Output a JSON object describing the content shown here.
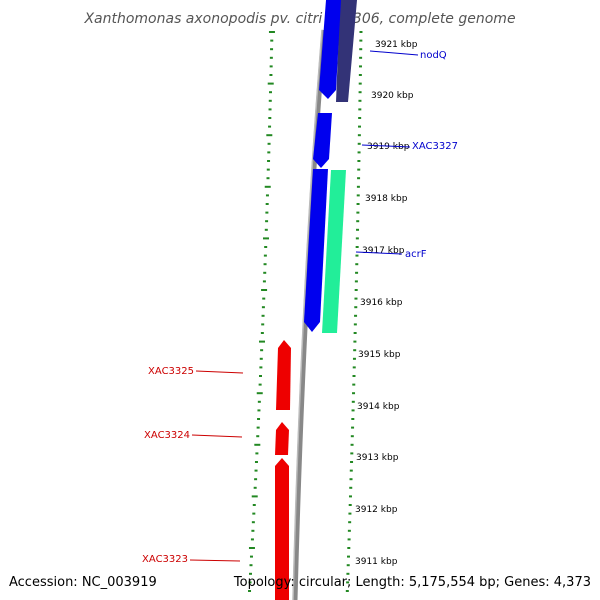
{
  "title": "Xanthomonas axonopodis pv. citri str. 306, complete genome",
  "footer": {
    "accession": "Accession: NC_003919",
    "summary": "Topology: circular; Length: 5,175,554 bp; Genes: 4,373"
  },
  "colors": {
    "forward_gene": "#0000ee",
    "reverse_gene": "#ee0000",
    "rna_gene": "#22ee99",
    "other_feature": "#333377",
    "backbone": "#888888",
    "tick": "#228822",
    "label_forward": "#0000cc",
    "label_reverse": "#cc0000"
  },
  "scale": {
    "unit": "kbp",
    "ticks": [
      {
        "label": "3921 kbp"
      },
      {
        "label": "3920 kbp"
      },
      {
        "label": "3919 kbp"
      },
      {
        "label": "3918 kbp"
      },
      {
        "label": "3917 kbp"
      },
      {
        "label": "3916 kbp"
      },
      {
        "label": "3915 kbp"
      },
      {
        "label": "3914 kbp"
      },
      {
        "label": "3913 kbp"
      },
      {
        "label": "3912 kbp"
      },
      {
        "label": "3911 kbp"
      }
    ]
  },
  "genes": [
    {
      "label": "nodQ",
      "strand": "forward"
    },
    {
      "label": "XAC3327",
      "strand": "forward"
    },
    {
      "label": "acrF",
      "strand": "forward"
    },
    {
      "label": "XAC3325",
      "strand": "reverse"
    },
    {
      "label": "XAC3324",
      "strand": "reverse"
    },
    {
      "label": "XAC3323",
      "strand": "reverse"
    }
  ]
}
